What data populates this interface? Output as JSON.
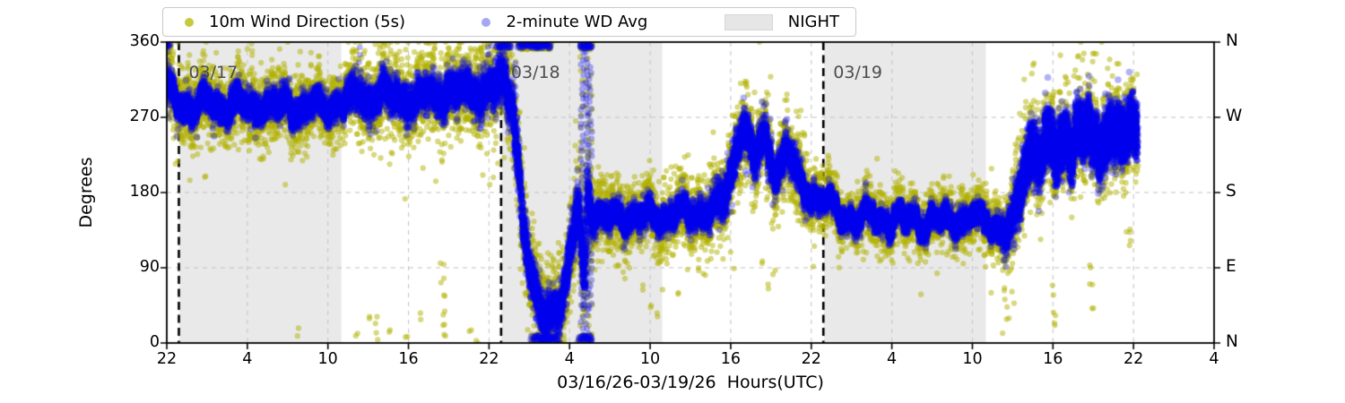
{
  "colors": {
    "night": "#e9e9e9",
    "grid": "#c8c8c8",
    "axis": "#000000",
    "date_line": "#000000",
    "date_label_text": "#4d4d4d",
    "wind_5s_dot": "rgba(178,178,0,0.5)",
    "wind_5s_dense": "#b4b400",
    "wd_avg_dot": "rgba(0,0,240,0.3)",
    "wd_avg_dense": "#0000f0",
    "legend_wind_5s_marker": "#c9c93e",
    "legend_wd_avg_marker": "#a2a9f1",
    "legend_night_patch": "#e6e6e6"
  },
  "legend": {
    "items": [
      {
        "label": "10m Wind Direction (5s)",
        "marker": "dot"
      },
      {
        "label": "2-minute WD Avg",
        "marker": "dot"
      },
      {
        "label": "NIGHT",
        "marker": "patch"
      }
    ]
  },
  "chart_data": {
    "type": "scatter",
    "title": "",
    "xlabel": "03/16/26-03/19/26  Hours(UTC)",
    "ylabel": "Degrees",
    "x_axis": {
      "total_hours": 78,
      "tick_every_hours": 6,
      "tick_labels": [
        "22",
        "4",
        "10",
        "16",
        "22",
        "4",
        "10",
        "16",
        "22",
        "4",
        "10",
        "16",
        "22",
        "4"
      ]
    },
    "y_axis": {
      "ylim": [
        0,
        360
      ],
      "ticks_deg": [
        0,
        90,
        180,
        270,
        360
      ],
      "left_labels": [
        "0",
        "90",
        "180",
        "270",
        "360"
      ],
      "right_labels": [
        "N",
        "E",
        "S",
        "W",
        "N"
      ]
    },
    "grid": "dashed",
    "night_regions_hours": [
      [
        0.95,
        13.0
      ],
      [
        24.95,
        36.9
      ],
      [
        48.95,
        61.0
      ]
    ],
    "date_lines": [
      {
        "hour": 0.9,
        "label": "03/17"
      },
      {
        "hour": 24.9,
        "label": "03/18"
      },
      {
        "hour": 48.9,
        "label": "03/19"
      }
    ],
    "series": [
      {
        "name": "10m Wind Direction (5s)",
        "sample_step_s": 20,
        "radius_px": 3.1
      },
      {
        "name": "2-minute WD Avg",
        "sample_step_s": 15,
        "radius_px": 3.8
      }
    ],
    "data_end_hour": 72.3,
    "direction_profile_deg": [
      [
        0,
        302
      ],
      [
        0.5,
        293
      ],
      [
        1,
        287
      ],
      [
        2,
        283
      ],
      [
        3,
        287
      ],
      [
        4,
        283
      ],
      [
        5,
        287
      ],
      [
        6,
        282
      ],
      [
        7,
        286
      ],
      [
        8,
        281
      ],
      [
        9,
        284
      ],
      [
        10,
        280
      ],
      [
        11,
        284
      ],
      [
        12,
        282
      ],
      [
        13,
        288
      ],
      [
        14,
        293
      ],
      [
        14.5,
        299
      ],
      [
        15,
        288
      ],
      [
        15.5,
        296
      ],
      [
        16,
        302
      ],
      [
        16.5,
        290
      ],
      [
        17,
        297
      ],
      [
        17.5,
        288
      ],
      [
        18,
        296
      ],
      [
        18.5,
        286
      ],
      [
        19,
        294
      ],
      [
        19.5,
        300
      ],
      [
        20,
        291
      ],
      [
        20.5,
        299
      ],
      [
        21,
        306
      ],
      [
        21.5,
        296
      ],
      [
        22,
        303
      ],
      [
        22.5,
        295
      ],
      [
        23,
        305
      ],
      [
        23.5,
        298
      ],
      [
        24,
        309
      ],
      [
        24.5,
        303
      ],
      [
        25,
        311
      ],
      [
        25.4,
        305
      ],
      [
        25.8,
        280
      ],
      [
        26.2,
        215
      ],
      [
        26.6,
        140
      ],
      [
        27,
        85
      ],
      [
        27.4,
        55
      ],
      [
        27.8,
        40
      ],
      [
        28.2,
        32
      ],
      [
        28.6,
        40
      ],
      [
        29,
        52
      ],
      [
        29.4,
        45
      ],
      [
        29.8,
        75
      ],
      [
        30.2,
        120
      ],
      [
        30.6,
        165
      ],
      [
        30.9,
        120
      ],
      [
        31.1,
        60
      ],
      [
        31.35,
        200
      ],
      [
        31.6,
        160
      ],
      [
        32,
        152
      ],
      [
        33,
        148
      ],
      [
        34,
        154
      ],
      [
        35,
        149
      ],
      [
        36,
        153
      ],
      [
        37,
        150
      ],
      [
        38,
        156
      ],
      [
        39,
        153
      ],
      [
        40,
        160
      ],
      [
        40.8,
        158
      ],
      [
        41.5,
        168
      ],
      [
        42,
        200
      ],
      [
        42.6,
        248
      ],
      [
        43,
        262
      ],
      [
        43.4,
        235
      ],
      [
        43.8,
        212
      ],
      [
        44.2,
        240
      ],
      [
        44.6,
        248
      ],
      [
        45,
        222
      ],
      [
        45.4,
        205
      ],
      [
        45.8,
        218
      ],
      [
        46.2,
        230
      ],
      [
        46.6,
        212
      ],
      [
        47,
        196
      ],
      [
        47.5,
        186
      ],
      [
        48,
        178
      ],
      [
        48.5,
        172
      ],
      [
        49,
        168
      ],
      [
        50,
        160
      ],
      [
        50.5,
        148
      ],
      [
        51,
        155
      ],
      [
        51.5,
        142
      ],
      [
        52,
        150
      ],
      [
        52.5,
        158
      ],
      [
        53,
        146
      ],
      [
        53.5,
        152
      ],
      [
        54,
        142
      ],
      [
        54.5,
        150
      ],
      [
        55,
        144
      ],
      [
        55.5,
        152
      ],
      [
        56,
        147
      ],
      [
        56.5,
        140
      ],
      [
        57,
        148
      ],
      [
        57.5,
        143
      ],
      [
        58,
        150
      ],
      [
        58.5,
        145
      ],
      [
        59,
        151
      ],
      [
        59.5,
        144
      ],
      [
        60,
        150
      ],
      [
        60.5,
        146
      ],
      [
        61,
        150
      ],
      [
        61.5,
        143
      ],
      [
        62,
        138
      ],
      [
        62.5,
        132
      ],
      [
        63,
        140
      ],
      [
        63.4,
        170
      ],
      [
        63.8,
        205
      ],
      [
        64.2,
        228
      ],
      [
        64.6,
        238
      ],
      [
        65,
        218
      ],
      [
        65.4,
        232
      ],
      [
        65.8,
        246
      ],
      [
        66.2,
        222
      ],
      [
        66.6,
        238
      ],
      [
        67,
        252
      ],
      [
        67.4,
        232
      ],
      [
        67.8,
        258
      ],
      [
        68.2,
        238
      ],
      [
        68.6,
        262
      ],
      [
        69,
        242
      ],
      [
        69.4,
        228
      ],
      [
        69.8,
        246
      ],
      [
        70.2,
        260
      ],
      [
        70.6,
        242
      ],
      [
        71,
        252
      ],
      [
        71.4,
        238
      ],
      [
        71.8,
        258
      ],
      [
        72.1,
        268
      ],
      [
        72.3,
        262
      ]
    ],
    "spread_deg": {
      "wind_5s": [
        [
          0,
          36
        ],
        [
          13,
          34
        ],
        [
          14,
          40
        ],
        [
          24,
          44
        ],
        [
          25.5,
          52
        ],
        [
          27,
          55
        ],
        [
          29,
          50
        ],
        [
          31,
          52
        ],
        [
          32,
          34
        ],
        [
          40,
          36
        ],
        [
          41.5,
          44
        ],
        [
          47,
          40
        ],
        [
          48,
          34
        ],
        [
          49,
          28
        ],
        [
          61,
          30
        ],
        [
          62,
          34
        ],
        [
          63.5,
          50
        ],
        [
          72.3,
          52
        ]
      ],
      "wd_avg": [
        [
          0,
          15
        ],
        [
          13,
          14
        ],
        [
          14,
          19
        ],
        [
          24,
          20
        ],
        [
          25.5,
          26
        ],
        [
          27,
          24
        ],
        [
          29,
          22
        ],
        [
          31,
          28
        ],
        [
          32,
          13
        ],
        [
          40,
          14
        ],
        [
          41.5,
          22
        ],
        [
          47,
          18
        ],
        [
          48,
          13
        ],
        [
          49,
          11
        ],
        [
          61,
          12
        ],
        [
          62,
          13
        ],
        [
          63.5,
          28
        ],
        [
          72.3,
          30
        ]
      ]
    },
    "wrap_streaks": [
      {
        "hour": 0.15,
        "from": 268,
        "to": 352
      },
      {
        "hour": 25.9,
        "from": 250,
        "to": 340
      },
      {
        "hour": 30.95,
        "from": 2,
        "to": 358
      },
      {
        "hour": 31.3,
        "from": 2,
        "to": 358
      },
      {
        "hour": 31.55,
        "from": 40,
        "to": 330
      }
    ],
    "pile_ranges": {
      "top": [
        [
          0,
          0.25
        ],
        [
          24.6,
          25.6
        ],
        [
          26.2,
          28.6
        ],
        [
          30.8,
          31.7
        ]
      ],
      "bottom": [
        [
          27.2,
          29.2
        ],
        [
          30.7,
          31.7
        ]
      ]
    },
    "avg_top_spike_hours": [
      14.4,
      23.9,
      24.7,
      25.2
    ],
    "yellow_top_spike_range": [
      13.5,
      26.2
    ],
    "low_outliers_deg": [
      [
        9.7,
        12
      ],
      [
        14.2,
        8
      ],
      [
        15.0,
        30
      ],
      [
        15.6,
        22
      ],
      [
        15.7,
        10
      ],
      [
        16.6,
        12
      ],
      [
        17.9,
        7
      ],
      [
        19.0,
        33
      ],
      [
        20.5,
        90
      ],
      [
        20.55,
        74
      ],
      [
        20.6,
        55
      ],
      [
        20.62,
        35
      ],
      [
        20.65,
        20
      ],
      [
        20.7,
        8
      ],
      [
        22.6,
        10
      ],
      [
        23.1,
        5
      ],
      [
        26.4,
        120
      ],
      [
        33.5,
        92
      ],
      [
        34.0,
        80
      ],
      [
        35.5,
        66
      ],
      [
        36.0,
        46
      ],
      [
        36.5,
        34
      ],
      [
        38.2,
        60
      ],
      [
        39.5,
        88
      ],
      [
        44.3,
        102
      ],
      [
        44.8,
        72
      ],
      [
        45.2,
        88
      ],
      [
        52.0,
        106
      ],
      [
        55.3,
        98
      ],
      [
        58.1,
        108
      ],
      [
        62.3,
        68
      ],
      [
        62.5,
        48
      ],
      [
        62.6,
        30
      ],
      [
        62.75,
        85
      ],
      [
        63.0,
        55
      ],
      [
        66.1,
        62
      ],
      [
        66.15,
        35
      ],
      [
        66.2,
        18
      ],
      [
        68.8,
        95
      ],
      [
        68.85,
        70
      ],
      [
        68.9,
        45
      ],
      [
        71.7,
        118
      ],
      [
        71.8,
        130
      ]
    ],
    "high_outliers_deg": [
      [
        64.5,
        330
      ],
      [
        68.3,
        340
      ],
      [
        69.0,
        346
      ],
      [
        70.2,
        336
      ]
    ]
  }
}
